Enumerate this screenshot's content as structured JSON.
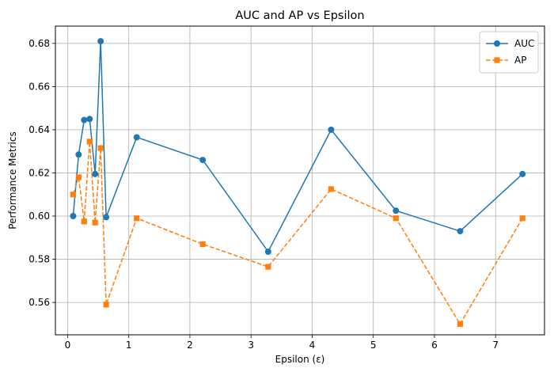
{
  "chart_data": {
    "type": "line",
    "title": "AUC and AP vs Epsilon",
    "xlabel": "Epsilon (ε)",
    "ylabel": "Performance Metrics",
    "xlim": [
      -0.2,
      7.8
    ],
    "ylim": [
      0.545,
      0.688
    ],
    "xticks": [
      0,
      1,
      2,
      3,
      4,
      5,
      6,
      7
    ],
    "yticks": [
      0.56,
      0.58,
      0.6,
      0.62,
      0.64,
      0.66,
      0.68
    ],
    "grid": true,
    "legend_position": "top-right",
    "series": [
      {
        "name": "AUC",
        "color": "#1f77b4",
        "marker": "circle",
        "linestyle": "solid",
        "x": [
          0.09,
          0.18,
          0.27,
          0.36,
          0.45,
          0.54,
          0.63,
          1.13,
          2.21,
          3.28,
          4.31,
          5.37,
          6.42,
          7.44
        ],
        "y": [
          0.6,
          0.6285,
          0.6445,
          0.645,
          0.6195,
          0.681,
          0.5995,
          0.6365,
          0.626,
          0.5835,
          0.64,
          0.6025,
          0.593,
          0.6195
        ]
      },
      {
        "name": "AP",
        "color": "#ff7f0e",
        "marker": "square",
        "linestyle": "dashed",
        "x": [
          0.09,
          0.18,
          0.27,
          0.36,
          0.45,
          0.54,
          0.63,
          1.13,
          2.21,
          3.28,
          4.31,
          5.37,
          6.42,
          7.44
        ],
        "y": [
          0.61,
          0.618,
          0.5975,
          0.6345,
          0.597,
          0.6315,
          0.559,
          0.599,
          0.587,
          0.5765,
          0.6125,
          0.599,
          0.55,
          0.599
        ]
      }
    ]
  }
}
